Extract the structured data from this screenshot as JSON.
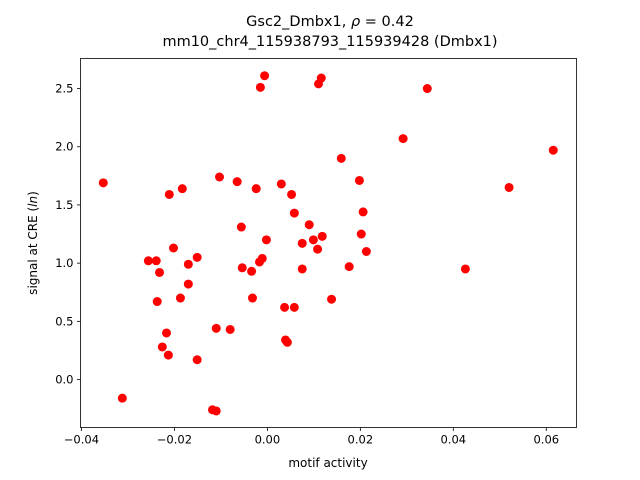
{
  "chart_data": {
    "type": "scatter",
    "title_line1": {
      "prefix": "Gsc2_Dmbx1, ",
      "symbol": "ρ",
      "suffix": " = 0.42"
    },
    "title_line2": "mm10_chr4_115938793_115939428 (Dmbx1)",
    "xlabel": "motif activity",
    "ylabel": {
      "prefix": "signal at CRE (",
      "italic": "ln",
      "suffix": ")"
    },
    "xlim": [
      -0.0402,
      0.0665
    ],
    "ylim": [
      -0.412,
      2.758
    ],
    "xticks": [
      -0.04,
      -0.02,
      0.0,
      0.02,
      0.04,
      0.06
    ],
    "xtick_labels": [
      "−0.04",
      "−0.02",
      "0.00",
      "0.02",
      "0.04",
      "0.06"
    ],
    "yticks": [
      0.0,
      0.5,
      1.0,
      1.5,
      2.0,
      2.5
    ],
    "ytick_labels": [
      "0.0",
      "0.5",
      "1.0",
      "1.5",
      "2.0",
      "2.5"
    ],
    "grid": false,
    "marker_color": "#ff0000",
    "points": [
      [
        -0.0353,
        1.69
      ],
      [
        -0.0312,
        -0.16
      ],
      [
        -0.0006,
        2.61
      ],
      [
        -0.0015,
        2.51
      ],
      [
        0.0116,
        2.59
      ],
      [
        0.011,
        2.54
      ],
      [
        0.0344,
        2.5
      ],
      [
        0.0292,
        2.07
      ],
      [
        0.0615,
        1.97
      ],
      [
        0.0159,
        1.9
      ],
      [
        0.052,
        1.65
      ],
      [
        -0.0103,
        1.74
      ],
      [
        -0.0065,
        1.7
      ],
      [
        -0.0024,
        1.64
      ],
      [
        -0.0183,
        1.64
      ],
      [
        -0.0211,
        1.59
      ],
      [
        0.003,
        1.68
      ],
      [
        0.0052,
        1.59
      ],
      [
        0.0198,
        1.71
      ],
      [
        0.0058,
        1.43
      ],
      [
        0.0206,
        1.44
      ],
      [
        -0.0056,
        1.31
      ],
      [
        0.009,
        1.33
      ],
      [
        -0.0002,
        1.2
      ],
      [
        0.0118,
        1.23
      ],
      [
        0.0075,
        1.17
      ],
      [
        0.0202,
        1.25
      ],
      [
        0.0099,
        1.2
      ],
      [
        0.0108,
        1.12
      ],
      [
        -0.0202,
        1.13
      ],
      [
        0.0213,
        1.1
      ],
      [
        -0.0151,
        1.05
      ],
      [
        -0.0256,
        1.02
      ],
      [
        -0.0239,
        1.02
      ],
      [
        -0.0011,
        1.04
      ],
      [
        -0.0017,
        1.01
      ],
      [
        -0.017,
        0.99
      ],
      [
        -0.0054,
        0.96
      ],
      [
        0.0075,
        0.95
      ],
      [
        0.0176,
        0.97
      ],
      [
        0.0426,
        0.95
      ],
      [
        -0.0034,
        0.93
      ],
      [
        -0.0232,
        0.92
      ],
      [
        -0.017,
        0.82
      ],
      [
        -0.0187,
        0.7
      ],
      [
        -0.0237,
        0.67
      ],
      [
        -0.0032,
        0.7
      ],
      [
        0.0138,
        0.69
      ],
      [
        0.0037,
        0.62
      ],
      [
        0.0058,
        0.62
      ],
      [
        -0.011,
        0.44
      ],
      [
        -0.008,
        0.43
      ],
      [
        -0.0217,
        0.4
      ],
      [
        0.0039,
        0.34
      ],
      [
        0.0043,
        0.32
      ],
      [
        -0.0226,
        0.28
      ],
      [
        -0.0213,
        0.21
      ],
      [
        -0.0151,
        0.17
      ],
      [
        -0.0118,
        -0.26
      ],
      [
        -0.011,
        -0.27
      ]
    ]
  }
}
